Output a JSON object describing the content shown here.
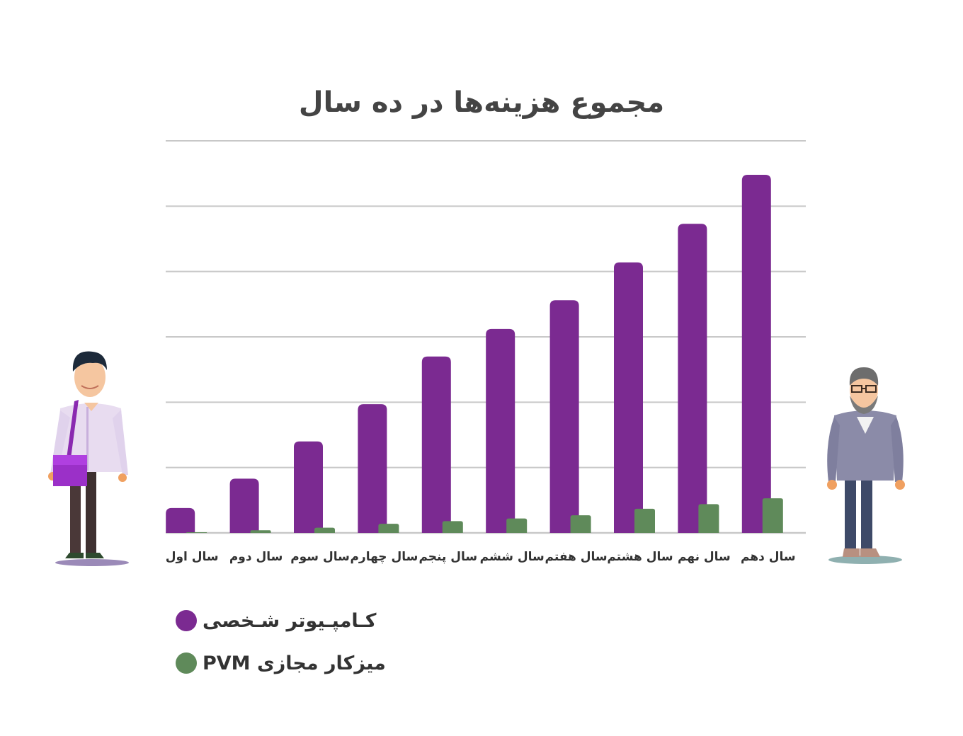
{
  "chart_data": {
    "type": "bar",
    "title": "مجموع هزینه‌ها در ده سال",
    "categories": [
      "سال اول",
      "سال دوم",
      "سال سوم",
      "سال چهارم",
      "سال پنجم",
      "سال ششم",
      "سال هفتم",
      "سال هشتم",
      "سال نهم",
      "سال دهم"
    ],
    "series": [
      {
        "name": "کـامپـیوتر شـخصی",
        "color": "#7b2a91",
        "values": [
          0.38,
          0.83,
          1.4,
          1.97,
          2.7,
          3.12,
          3.56,
          4.14,
          4.73,
          5.48
        ]
      },
      {
        "name": "میزکار مجازی PVM",
        "color": "#5f8a5a",
        "values": [
          0.01,
          0.04,
          0.08,
          0.14,
          0.18,
          0.22,
          0.27,
          0.37,
          0.44,
          0.53
        ]
      }
    ],
    "ylim": [
      0,
      6
    ],
    "grid": true,
    "y_ticks_shown": false,
    "legend_position": "bottom-left"
  },
  "colors": {
    "grid": "#c8c8c8",
    "label": "#333333",
    "title": "#444444"
  },
  "illustrations": {
    "left": "young-man-with-shoulder-bag",
    "right": "older-man-with-beard-and-glasses"
  }
}
